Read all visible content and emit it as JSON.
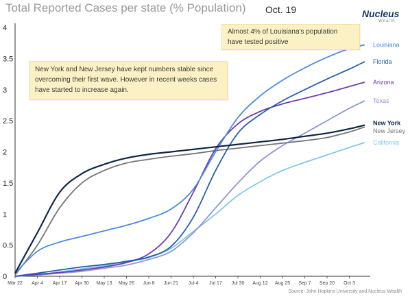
{
  "title": "Total Reported Cases per state (% Population)",
  "date_label": "Oct. 19",
  "logo": {
    "word": "Nucleus",
    "sub": "Wealth"
  },
  "annotations": {
    "louisiana": "Almost 4% of Louisiana's population have tested positive",
    "ny_nj": "New York and New Jersey have kept numbers stable since overcoming their first wave. However in recent weeks cases have started to increase again."
  },
  "source": "Source: John Hopkins University and Nucleus Wealth",
  "colors": {
    "Louisiana": "#4a8ae2",
    "Florida": "#1f5fb0",
    "Arizona": "#6c3bb2",
    "Texas": "#8d95d6",
    "New York": "#0f2547",
    "New Jersey": "#747474",
    "California": "#7ec7ee"
  },
  "chart_data": {
    "type": "line",
    "title": "Total Reported Cases per state (% Population)",
    "xlabel": "",
    "ylabel": "",
    "x_range": [
      "Mar 22",
      "Oct 12"
    ],
    "ylim": [
      0,
      4
    ],
    "y_ticks": [
      0,
      0.5,
      1,
      1.5,
      2,
      2.5,
      3,
      3.5,
      4
    ],
    "y_tick_labels": [
      "0",
      "0.5",
      "1",
      "1.5",
      "2",
      "2.5",
      "3",
      "3.5",
      "4"
    ],
    "x_ticks": [
      "Mar 22",
      "Apr 4",
      "Apr 17",
      "Apr 30",
      "May 13",
      "May 26",
      "Jun 8",
      "Jun 21",
      "Jul 4",
      "Jul 17",
      "Jul 30",
      "Aug 12",
      "Aug 25",
      "Sep 7",
      "Sep 20",
      "Oct 3"
    ],
    "x_tick_labels": [
      "Mar 22",
      "Apr 4",
      "Apr 17",
      "Apr 30",
      "May 13",
      "May 26",
      "Jun 8",
      "Jun 21",
      "Jul 4",
      "Jul 17",
      "Jul 30",
      "Aug 12",
      "Aug 25",
      "Sep 7",
      "Sep 20",
      "Oct 3"
    ],
    "grid": false,
    "series": [
      {
        "name": "Louisiana",
        "x": [
          "Mar 22",
          "Apr 4",
          "Apr 17",
          "Apr 30",
          "May 13",
          "May 26",
          "Jun 8",
          "Jun 21",
          "Jul 4",
          "Jul 17",
          "Jul 30",
          "Aug 12",
          "Aug 25",
          "Sep 7",
          "Sep 20",
          "Oct 3",
          "Oct 12"
        ],
        "y": [
          0.05,
          0.4,
          0.55,
          0.64,
          0.73,
          0.82,
          0.93,
          1.08,
          1.4,
          2.0,
          2.55,
          2.9,
          3.15,
          3.35,
          3.52,
          3.66,
          3.72
        ]
      },
      {
        "name": "Florida",
        "x": [
          "Mar 22",
          "Apr 4",
          "Apr 17",
          "Apr 30",
          "May 13",
          "May 26",
          "Jun 8",
          "Jun 21",
          "Jul 4",
          "Jul 17",
          "Jul 30",
          "Aug 12",
          "Aug 25",
          "Sep 7",
          "Sep 20",
          "Oct 3",
          "Oct 12"
        ],
        "y": [
          0.0,
          0.05,
          0.1,
          0.15,
          0.19,
          0.24,
          0.31,
          0.48,
          0.95,
          1.7,
          2.3,
          2.6,
          2.82,
          3.0,
          3.17,
          3.33,
          3.45
        ]
      },
      {
        "name": "Arizona",
        "x": [
          "Mar 22",
          "Apr 4",
          "Apr 17",
          "Apr 30",
          "May 13",
          "May 26",
          "Jun 8",
          "Jun 21",
          "Jul 4",
          "Jul 17",
          "Jul 30",
          "Aug 12",
          "Aug 25",
          "Sep 7",
          "Sep 20",
          "Oct 3",
          "Oct 12"
        ],
        "y": [
          0.0,
          0.03,
          0.06,
          0.1,
          0.15,
          0.22,
          0.36,
          0.7,
          1.35,
          2.05,
          2.45,
          2.65,
          2.77,
          2.86,
          2.95,
          3.05,
          3.12
        ]
      },
      {
        "name": "Texas",
        "x": [
          "Mar 22",
          "Apr 4",
          "Apr 17",
          "Apr 30",
          "May 13",
          "May 26",
          "Jun 8",
          "Jun 21",
          "Jul 4",
          "Jul 17",
          "Jul 30",
          "Aug 12",
          "Aug 25",
          "Sep 7",
          "Sep 20",
          "Oct 3",
          "Oct 12"
        ],
        "y": [
          0.0,
          0.02,
          0.05,
          0.08,
          0.13,
          0.18,
          0.27,
          0.4,
          0.7,
          1.1,
          1.5,
          1.85,
          2.1,
          2.3,
          2.5,
          2.7,
          2.82
        ]
      },
      {
        "name": "New York",
        "x": [
          "Mar 22",
          "Apr 4",
          "Apr 17",
          "Apr 30",
          "May 13",
          "May 26",
          "Jun 8",
          "Jun 21",
          "Jul 4",
          "Jul 17",
          "Jul 30",
          "Aug 12",
          "Aug 25",
          "Sep 7",
          "Sep 20",
          "Oct 3",
          "Oct 12"
        ],
        "y": [
          0.05,
          0.7,
          1.35,
          1.65,
          1.8,
          1.9,
          1.96,
          2.0,
          2.04,
          2.08,
          2.12,
          2.16,
          2.2,
          2.25,
          2.3,
          2.37,
          2.43
        ]
      },
      {
        "name": "New Jersey",
        "x": [
          "Mar 22",
          "Apr 4",
          "Apr 17",
          "Apr 30",
          "May 13",
          "May 26",
          "Jun 8",
          "Jun 21",
          "Jul 4",
          "Jul 17",
          "Jul 30",
          "Aug 12",
          "Aug 25",
          "Sep 7",
          "Sep 20",
          "Oct 3",
          "Oct 12"
        ],
        "y": [
          0.02,
          0.5,
          1.1,
          1.5,
          1.7,
          1.82,
          1.88,
          1.93,
          1.97,
          2.02,
          2.06,
          2.1,
          2.14,
          2.18,
          2.23,
          2.32,
          2.4
        ]
      },
      {
        "name": "California",
        "x": [
          "Mar 22",
          "Apr 4",
          "Apr 17",
          "Apr 30",
          "May 13",
          "May 26",
          "Jun 8",
          "Jun 21",
          "Jul 4",
          "Jul 17",
          "Jul 30",
          "Aug 12",
          "Aug 25",
          "Sep 7",
          "Sep 20",
          "Oct 3",
          "Oct 12"
        ],
        "y": [
          0.0,
          0.03,
          0.07,
          0.12,
          0.17,
          0.23,
          0.3,
          0.45,
          0.72,
          1.0,
          1.3,
          1.52,
          1.7,
          1.83,
          1.95,
          2.07,
          2.15
        ]
      }
    ]
  }
}
